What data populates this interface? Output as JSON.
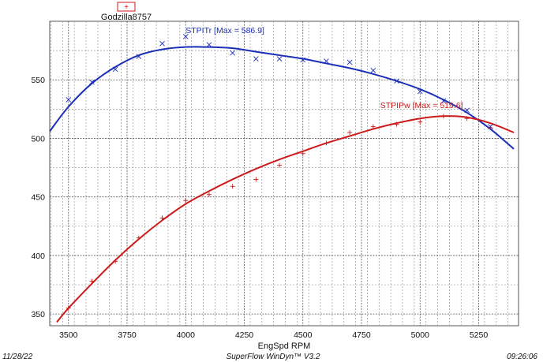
{
  "chart_data": {
    "type": "line",
    "xlabel": "EngSpd RPM",
    "ylabel": "",
    "xlim": [
      3420,
      5420
    ],
    "ylim": [
      340,
      600
    ],
    "x_ticks": [
      3500,
      3750,
      4000,
      4250,
      4500,
      4750,
      5000,
      5250
    ],
    "y_ticks": [
      350,
      400,
      450,
      500,
      550
    ],
    "grid": true,
    "legend": {
      "position": "top-left",
      "entries": [
        {
          "name": "Godzilla8757",
          "marker": "+"
        }
      ]
    },
    "series": [
      {
        "name": "STPITr",
        "color": "#1b2fb8",
        "label": "STPITr [Max = 586.9]",
        "points": [
          [
            3500,
            533
          ],
          [
            3600,
            548
          ],
          [
            3700,
            559
          ],
          [
            3800,
            570
          ],
          [
            3900,
            581
          ],
          [
            4000,
            587
          ],
          [
            4100,
            580
          ],
          [
            4200,
            573
          ],
          [
            4300,
            568
          ],
          [
            4400,
            568
          ],
          [
            4500,
            567
          ],
          [
            4600,
            566
          ],
          [
            4700,
            565
          ],
          [
            4800,
            558
          ],
          [
            4900,
            549
          ],
          [
            5000,
            540
          ],
          [
            5100,
            532
          ],
          [
            5200,
            524
          ],
          [
            5300,
            510
          ]
        ],
        "fit": [
          [
            3420,
            506
          ],
          [
            3500,
            527
          ],
          [
            3600,
            547
          ],
          [
            3700,
            561
          ],
          [
            3800,
            571
          ],
          [
            3900,
            576
          ],
          [
            4000,
            578
          ],
          [
            4100,
            578
          ],
          [
            4200,
            577
          ],
          [
            4300,
            574
          ],
          [
            4400,
            571
          ],
          [
            4500,
            568
          ],
          [
            4600,
            564
          ],
          [
            4700,
            560
          ],
          [
            4800,
            555
          ],
          [
            4900,
            549
          ],
          [
            5000,
            542
          ],
          [
            5100,
            533
          ],
          [
            5200,
            522
          ],
          [
            5300,
            508
          ],
          [
            5400,
            491
          ]
        ]
      },
      {
        "name": "STPIPw",
        "color": "#cc1a1a",
        "label": "STPIPw [Max = 519.6]",
        "points": [
          [
            3500,
            355
          ],
          [
            3600,
            378
          ],
          [
            3700,
            395
          ],
          [
            3800,
            415
          ],
          [
            3900,
            432
          ],
          [
            4000,
            447
          ],
          [
            4100,
            452
          ],
          [
            4200,
            459
          ],
          [
            4300,
            465
          ],
          [
            4400,
            477
          ],
          [
            4500,
            487
          ],
          [
            4600,
            496
          ],
          [
            4700,
            505
          ],
          [
            4800,
            510
          ],
          [
            4900,
            512
          ],
          [
            5000,
            514
          ],
          [
            5100,
            519
          ],
          [
            5200,
            517
          ],
          [
            5300,
            509
          ]
        ],
        "fit": [
          [
            3450,
            343
          ],
          [
            3500,
            355
          ],
          [
            3600,
            376
          ],
          [
            3700,
            396
          ],
          [
            3800,
            414
          ],
          [
            3900,
            430
          ],
          [
            4000,
            444
          ],
          [
            4100,
            455
          ],
          [
            4200,
            465
          ],
          [
            4300,
            474
          ],
          [
            4400,
            482
          ],
          [
            4500,
            489
          ],
          [
            4600,
            496
          ],
          [
            4700,
            502
          ],
          [
            4800,
            508
          ],
          [
            4900,
            513
          ],
          [
            5000,
            517
          ],
          [
            5100,
            519
          ],
          [
            5200,
            518
          ],
          [
            5300,
            513
          ],
          [
            5400,
            505
          ]
        ]
      }
    ]
  },
  "footer": {
    "date": "11/28/22",
    "software": "SuperFlow WinDyn™ V3.2",
    "time": "09:26:06"
  }
}
